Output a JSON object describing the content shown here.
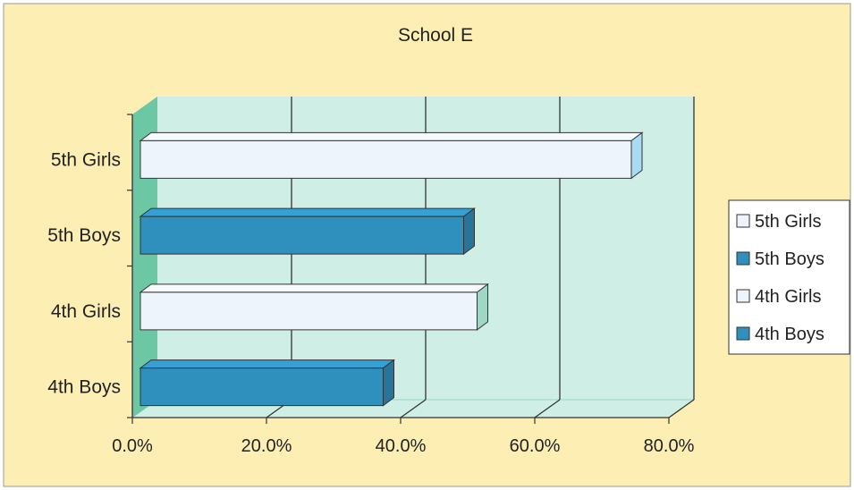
{
  "chart_data": {
    "type": "bar",
    "orientation": "horizontal",
    "style": "3d",
    "title": "School E",
    "categories": [
      "5th Girls",
      "5th Boys",
      "4th Girls",
      "4th Boys"
    ],
    "values": [
      0.74,
      0.49,
      0.51,
      0.37
    ],
    "value_format": "percent",
    "xlim": [
      0,
      0.8
    ],
    "xticks": [
      0,
      0.2,
      0.4,
      0.6,
      0.8
    ],
    "xtick_labels": [
      "0.0%",
      "20.0%",
      "40.0%",
      "60.0%",
      "80.0%"
    ],
    "grid": true,
    "legend": {
      "placement": "right",
      "entries": [
        {
          "label": "5th Girls",
          "color": "#eef4fb"
        },
        {
          "label": "5th Boys",
          "color": "#2f8fbd"
        },
        {
          "label": "4th Girls",
          "color": "#eef4fb"
        },
        {
          "label": "4th Boys",
          "color": "#2f8fbd"
        }
      ]
    },
    "colors": {
      "background": "#fdeeb3",
      "plot_wall": "#cfeee6",
      "side_wall": "#6cc7a5",
      "gridline": "#333333",
      "bar_light": "#eef4fb",
      "bar_dark": "#2f8fbd"
    }
  }
}
